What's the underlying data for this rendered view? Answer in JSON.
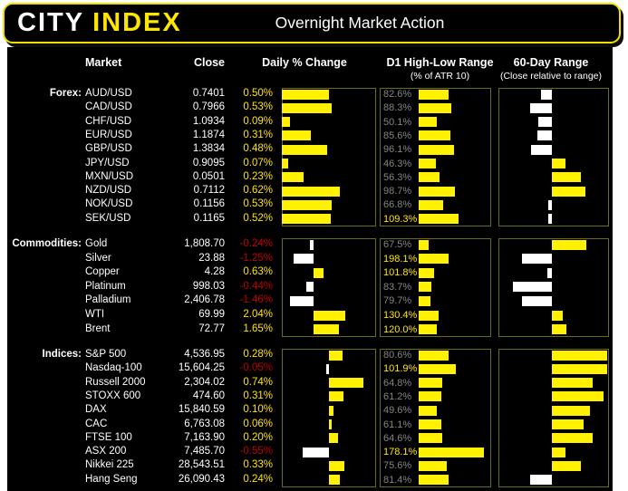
{
  "banner": {
    "logo_city": "CITY",
    "logo_index": "INDEX",
    "title": "Overnight Market Action"
  },
  "columns": {
    "market": "Market",
    "close": "Close",
    "daily": "Daily % Change",
    "d1": "D1 High-Low Range",
    "d1_sub": "(% of ATR 10)",
    "range60": "60-Day Range",
    "range60_sub": "(Close relative to range)"
  },
  "colors": {
    "yellow": "#ffe600",
    "bar_yellow": "#fff100",
    "negative_red": "#c00000",
    "dim_gray": "#858585",
    "panel_border": "#6c6c16",
    "background": "#000000",
    "page": "#ffffff"
  },
  "chart_data": {
    "type": "table",
    "title": "Overnight Market Action",
    "embedded_charts": [
      "bar"
    ],
    "notes": "daily_change_pct drawn as diverging bars (yellow positive, white negative); d1_range_pct_of_atr10 drawn as left-anchored yellow bars with labels (labels >=100% shown yellow, else gray); range60_position is close relative to 60-day range, estimated -1..1 from bar lengths (yellow right = upper half, white left = lower half)",
    "sections": [
      {
        "label": "Forex:",
        "daily_axis": [
          0,
          1.0
        ],
        "d1_axis_max": 185,
        "rows": [
          {
            "market": "AUD/USD",
            "close": "0.7401",
            "daily": 0.5,
            "d1": 82.6,
            "r60": -0.2
          },
          {
            "market": "CAD/USD",
            "close": "0.7966",
            "daily": 0.53,
            "d1": 88.3,
            "r60": -0.4
          },
          {
            "market": "CHF/USD",
            "close": "1.0934",
            "daily": 0.09,
            "d1": 50.1,
            "r60": -0.25
          },
          {
            "market": "EUR/USD",
            "close": "1.1874",
            "daily": 0.31,
            "d1": 85.6,
            "r60": -0.26
          },
          {
            "market": "GBP/USD",
            "close": "1.3834",
            "daily": 0.48,
            "d1": 96.1,
            "r60": -0.38
          },
          {
            "market": "JPY/USD",
            "close": "0.9095",
            "daily": 0.07,
            "d1": 46.3,
            "r60": 0.25
          },
          {
            "market": "MXN/USD",
            "close": "0.0501",
            "daily": 0.23,
            "d1": 56.3,
            "r60": 0.52
          },
          {
            "market": "NZD/USD",
            "close": "0.7112",
            "daily": 0.62,
            "d1": 98.7,
            "r60": 0.6
          },
          {
            "market": "NOK/USD",
            "close": "0.1156",
            "daily": 0.53,
            "d1": 66.8,
            "r60": -0.07
          },
          {
            "market": "SEK/USD",
            "close": "0.1165",
            "daily": 0.52,
            "d1": 109.3,
            "r60": -0.07
          }
        ]
      },
      {
        "label": "Commodities:",
        "daily_axis": [
          -2.0,
          4.0
        ],
        "d1_axis_max": 450,
        "rows": [
          {
            "market": "Gold",
            "close": "1,808.70",
            "daily": -0.24,
            "d1": 67.5,
            "r60": 0.62
          },
          {
            "market": "Silver",
            "close": "23.88",
            "daily": -1.25,
            "d1": 198.1,
            "r60": -0.54
          },
          {
            "market": "Copper",
            "close": "4.28",
            "daily": 0.63,
            "d1": 101.8,
            "r60": -0.09
          },
          {
            "market": "Platinum",
            "close": "998.03",
            "daily": -0.44,
            "d1": 83.7,
            "r60": -0.7
          },
          {
            "market": "Palladium",
            "close": "2,406.78",
            "daily": -1.46,
            "d1": 79.7,
            "r60": -0.54
          },
          {
            "market": "WTI",
            "close": "69.99",
            "daily": 2.04,
            "d1": 130.4,
            "r60": 0.19
          },
          {
            "market": "Brent",
            "close": "72.77",
            "daily": 1.65,
            "d1": 120.0,
            "r60": 0.27
          }
        ]
      },
      {
        "label": "Indices:",
        "daily_axis": [
          -1.0,
          1.0
        ],
        "d1_axis_max": 185,
        "rows": [
          {
            "market": "S&P 500",
            "close": "4,536.95",
            "daily": 0.28,
            "d1": 80.6,
            "r60": 1.0
          },
          {
            "market": "Nasdaq-100",
            "close": "15,604.25",
            "daily": -0.05,
            "d1": 101.9,
            "r60": 1.0
          },
          {
            "market": "Russell 2000",
            "close": "2,304.02",
            "daily": 0.74,
            "d1": 64.8,
            "r60": 0.73
          },
          {
            "market": "STOXX 600",
            "close": "474.60",
            "daily": 0.31,
            "d1": 61.2,
            "r60": 0.94
          },
          {
            "market": "DAX",
            "close": "15,840.59",
            "daily": 0.1,
            "d1": 49.6,
            "r60": 0.69
          },
          {
            "market": "CAC",
            "close": "6,763.08",
            "daily": 0.06,
            "d1": 61.1,
            "r60": 0.58
          },
          {
            "market": "FTSE 100",
            "close": "7,163.90",
            "daily": 0.2,
            "d1": 64.6,
            "r60": 0.73
          },
          {
            "market": "ASX 200",
            "close": "7,485.70",
            "daily": -0.55,
            "d1": 178.1,
            "r60": 0.25
          },
          {
            "market": "Nikkei 225",
            "close": "28,543.51",
            "daily": 0.33,
            "d1": 75.6,
            "r60": 0.52
          },
          {
            "market": "Hang Seng",
            "close": "26,090.43",
            "daily": 0.24,
            "d1": 81.4,
            "r60": -0.39
          }
        ]
      }
    ]
  }
}
